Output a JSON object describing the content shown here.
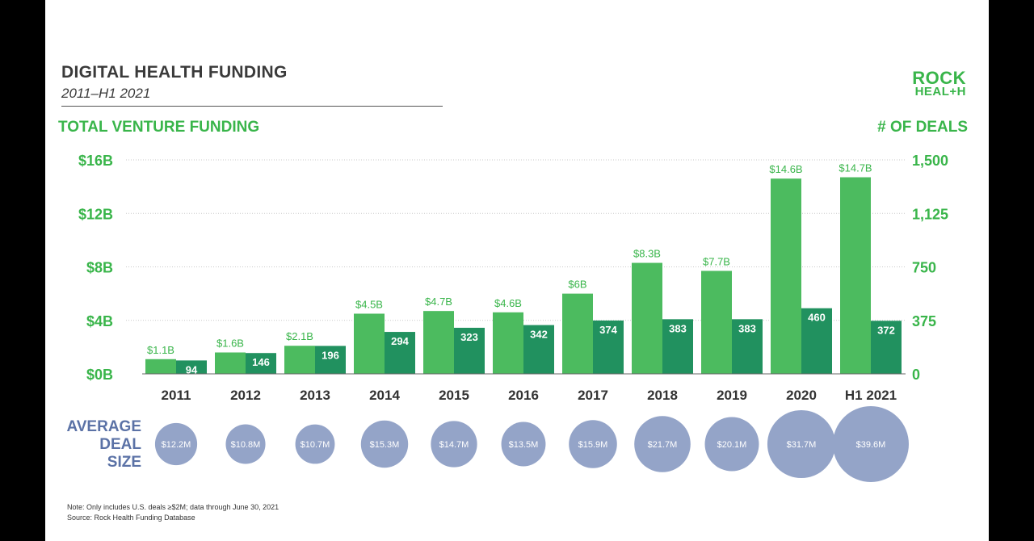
{
  "header": {
    "title": "DIGITAL HEALTH FUNDING",
    "subtitle": "2011–H1 2021"
  },
  "logo": {
    "line1": "ROCK",
    "line2": "HEAL+H"
  },
  "colors": {
    "funding_bar": "#4cbb5f",
    "deals_bar": "#21915f",
    "accent_green": "#39b54a",
    "bubble": "#94a4c8",
    "avg_label": "#5b72a6"
  },
  "chart_data": {
    "type": "bar",
    "title": "DIGITAL HEALTH FUNDING",
    "subtitle": "2011–H1 2021",
    "left_axis_title": "TOTAL VENTURE FUNDING",
    "right_axis_title": "# OF DEALS",
    "categories": [
      "2011",
      "2012",
      "2013",
      "2014",
      "2015",
      "2016",
      "2017",
      "2018",
      "2019",
      "2020",
      "H1 2021"
    ],
    "series": [
      {
        "name": "Total venture funding ($B)",
        "axis": "left",
        "values": [
          1.1,
          1.6,
          2.1,
          4.5,
          4.7,
          4.6,
          6,
          8.3,
          7.7,
          14.6,
          14.7
        ],
        "labels": [
          "$1.1B",
          "$1.6B",
          "$2.1B",
          "$4.5B",
          "$4.7B",
          "$4.6B",
          "$6B",
          "$8.3B",
          "$7.7B",
          "$14.6B",
          "$14.7B"
        ]
      },
      {
        "name": "# of deals",
        "axis": "right",
        "values": [
          94,
          146,
          196,
          294,
          323,
          342,
          374,
          383,
          383,
          460,
          372
        ],
        "labels": [
          "94",
          "146",
          "196",
          "294",
          "323",
          "342",
          "374",
          "383",
          "383",
          "460",
          "372"
        ]
      }
    ],
    "left_axis": {
      "ylim": [
        0,
        16
      ],
      "ticks": [
        0,
        4,
        8,
        12,
        16
      ],
      "tick_labels": [
        "$0B",
        "$4B",
        "$8B",
        "$12B",
        "$16B"
      ]
    },
    "right_axis": {
      "ylim": [
        0,
        1500
      ],
      "ticks": [
        0,
        375,
        750,
        1125,
        1500
      ],
      "tick_labels": [
        "0",
        "375",
        "750",
        "1,125",
        "1,500"
      ]
    },
    "average_deal_size": {
      "label_lines": [
        "AVERAGE",
        "DEAL",
        "SIZE"
      ],
      "values": [
        12.2,
        10.8,
        10.7,
        15.3,
        14.7,
        13.5,
        15.9,
        21.7,
        20.1,
        31.7,
        39.6
      ],
      "labels": [
        "$12.2M",
        "$10.8M",
        "$10.7M",
        "$15.3M",
        "$14.7M",
        "$13.5M",
        "$15.9M",
        "$21.7M",
        "$20.1M",
        "$31.7M",
        "$39.6M"
      ]
    },
    "grid": true
  },
  "footer": {
    "note": "Note: Only includes U.S. deals ≥$2M; data through June 30, 2021",
    "source": "Source: Rock Health Funding Database"
  }
}
